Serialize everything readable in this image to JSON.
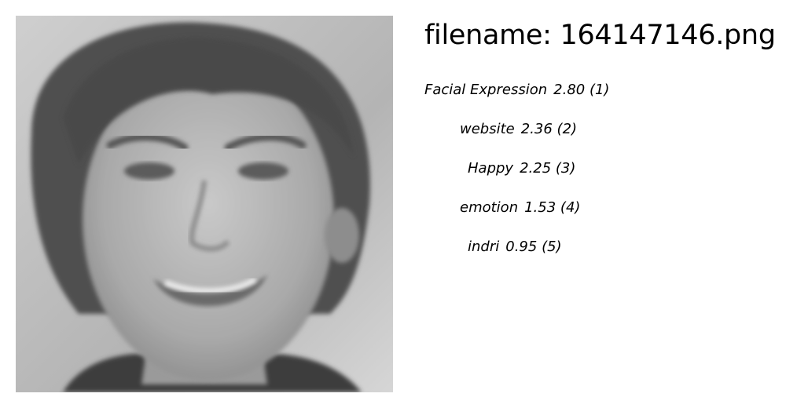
{
  "header": {
    "filename_label": "filename: 164147146.png"
  },
  "image": {
    "icon": "face-photo",
    "tone": "grayscale"
  },
  "predictions": [
    {
      "label": "Facial Expression",
      "score": "2.80",
      "rank": "(1)"
    },
    {
      "label": "website",
      "score": "2.36",
      "rank": "(2)"
    },
    {
      "label": "Happy",
      "score": "2.25",
      "rank": "(3)"
    },
    {
      "label": "emotion",
      "score": "1.53",
      "rank": "(4)"
    },
    {
      "label": "indri",
      "score": "0.95",
      "rank": "(5)"
    }
  ]
}
